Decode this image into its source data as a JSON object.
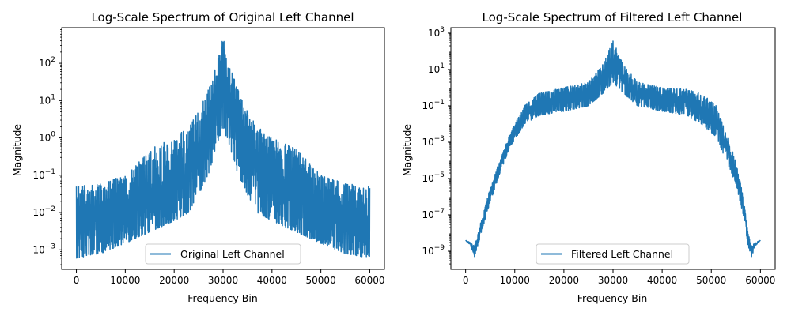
{
  "chart_data": [
    {
      "type": "line",
      "title": "Log-Scale Spectrum of Original Left Channel",
      "xlabel": "Frequency Bin",
      "ylabel": "Magnitude",
      "xlim": [
        -3000,
        63000
      ],
      "ylim": [
        0.0003,
        900
      ],
      "yscale": "log",
      "xticks": [
        0,
        10000,
        20000,
        30000,
        40000,
        50000,
        60000
      ],
      "yticks": [
        0.001,
        0.01,
        0.1,
        1,
        10,
        100
      ],
      "ytick_labels": [
        [
          "10",
          "−3"
        ],
        [
          "10",
          "−2"
        ],
        [
          "10",
          "−1"
        ],
        [
          "10",
          "0"
        ],
        [
          "10",
          "1"
        ],
        [
          "10",
          "2"
        ]
      ],
      "legend": "bottom-center",
      "series": [
        {
          "name": "Original Left Channel",
          "color": "#1f77b4",
          "envelope": {
            "x": [
              0,
              5000,
              10000,
              15000,
              20000,
              23000,
              25000,
              27000,
              28500,
              30000,
              31500,
              33000,
              35000,
              37000,
              40000,
              45000,
              50000,
              55000,
              60000
            ],
            "upper": [
              0.05,
              0.06,
              0.1,
              0.5,
              1.0,
              2.0,
              5.0,
              20,
              80,
              500,
              80,
              20,
              5.0,
              2.0,
              1.0,
              0.5,
              0.1,
              0.06,
              0.05
            ],
            "lower": [
              0.0006,
              0.0008,
              0.0015,
              0.003,
              0.006,
              0.01,
              0.03,
              0.1,
              0.5,
              2.0,
              0.5,
              0.1,
              0.03,
              0.01,
              0.006,
              0.003,
              0.0015,
              0.0008,
              0.0006
            ]
          }
        }
      ]
    },
    {
      "type": "line",
      "title": "Log-Scale Spectrum of Filtered Left Channel",
      "xlabel": "Frequency Bin",
      "ylabel": "Magnitude",
      "xlim": [
        -3000,
        63000
      ],
      "ylim": [
        1e-10,
        2000
      ],
      "yscale": "log",
      "xticks": [
        0,
        10000,
        20000,
        30000,
        40000,
        50000,
        60000
      ],
      "yticks": [
        1e-09,
        1e-07,
        1e-05,
        0.001,
        0.1,
        10,
        1000
      ],
      "ytick_labels": [
        [
          "10",
          "−9"
        ],
        [
          "10",
          "−7"
        ],
        [
          "10",
          "−5"
        ],
        [
          "10",
          "−3"
        ],
        [
          "10",
          "−1"
        ],
        [
          "10",
          "1"
        ],
        [
          "10",
          "3"
        ]
      ],
      "legend": "bottom-center",
      "series": [
        {
          "name": "Filtered Left Channel",
          "color": "#1f77b4",
          "envelope": {
            "x": [
              0,
              1000,
              1800,
              2500,
              3500,
              5000,
              7000,
              9000,
              12000,
              15000,
              20000,
              25000,
              28000,
              30000,
              32000,
              35000,
              40000,
              45000,
              48000,
              51000,
              53000,
              55000,
              56500,
              57500,
              58200,
              59000,
              60000
            ],
            "upper": [
              4e-09,
              3e-09,
              2e-09,
              1e-08,
              1e-07,
              3e-06,
              0.0001,
              0.003,
              0.1,
              0.5,
              1.0,
              2.0,
              20,
              400,
              20,
              2.0,
              1.0,
              0.8,
              0.5,
              0.1,
              0.003,
              0.0001,
              1e-06,
              1e-08,
              2e-09,
              3e-09,
              4e-09
            ],
            "lower": [
              4e-09,
              2e-09,
              5e-10,
              2e-09,
              2e-08,
              5e-07,
              2e-05,
              0.0005,
              0.01,
              0.03,
              0.05,
              0.1,
              0.5,
              2.0,
              0.5,
              0.1,
              0.05,
              0.03,
              0.01,
              0.002,
              0.0001,
              5e-06,
              1e-07,
              2e-09,
              5e-10,
              2e-09,
              4e-09
            ]
          }
        }
      ]
    }
  ]
}
